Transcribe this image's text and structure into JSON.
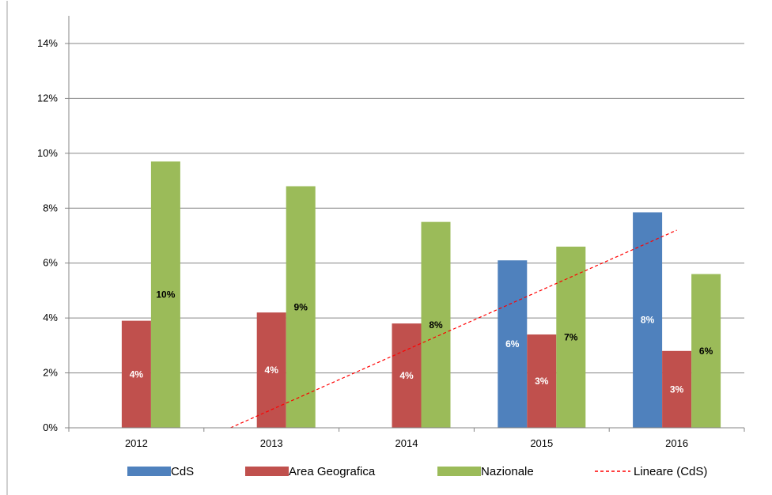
{
  "chart_data": {
    "type": "bar",
    "categories": [
      "2012",
      "2013",
      "2014",
      "2015",
      "2016"
    ],
    "series": [
      {
        "name": "CdS",
        "color": "#4F81BD",
        "values": [
          null,
          null,
          null,
          6.1,
          7.85
        ],
        "labels": [
          "",
          "",
          "",
          "6%",
          "8%"
        ],
        "label_color": "#ffffff"
      },
      {
        "name": "Area Geografica",
        "color": "#C0504D",
        "values": [
          3.9,
          4.2,
          3.8,
          3.4,
          2.8
        ],
        "labels": [
          "4%",
          "4%",
          "4%",
          "3%",
          "3%"
        ],
        "label_color": "#ffffff"
      },
      {
        "name": "Nazionale",
        "color": "#9BBB59",
        "values": [
          9.7,
          8.8,
          7.5,
          6.6,
          5.6
        ],
        "labels": [
          "10%",
          "9%",
          "8%",
          "7%",
          "6%"
        ],
        "label_color": "#000000"
      }
    ],
    "trendline": {
      "name": "Lineare (CdS)",
      "color": "#FF0000",
      "style": "dashed",
      "start": {
        "x": "2013",
        "y": 0
      },
      "end": {
        "x": "2016",
        "y": 7.2
      }
    },
    "ylim": [
      0,
      14
    ],
    "yticks": [
      0,
      2,
      4,
      6,
      8,
      10,
      12,
      14
    ],
    "ytick_labels": [
      "0%",
      "2%",
      "4%",
      "6%",
      "8%",
      "10%",
      "12%",
      "14%"
    ],
    "grid": true,
    "legend_position": "bottom",
    "title": "",
    "xlabel": "",
    "ylabel": ""
  }
}
